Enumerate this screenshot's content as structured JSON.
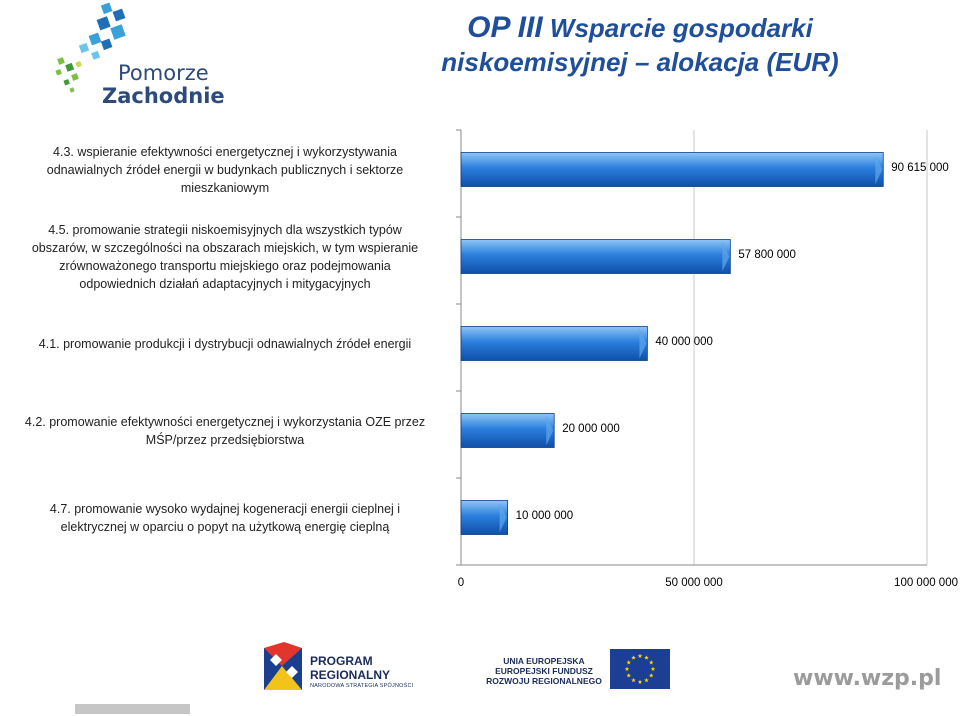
{
  "header": {
    "title_line1_a": "OP III",
    "title_line1_b": " Wsparcie gospodarki",
    "title_line2": "niskoemisyjnej – alokacja (EUR)",
    "logo": {
      "line1": "Pomorze",
      "line2": "Zachodnie"
    }
  },
  "chart_data": {
    "type": "bar",
    "orientation": "horizontal",
    "categories": [
      "4.3. wspieranie efektywności energetycznej i wykorzystywania odnawialnych źródeł energii w budynkach publicznych i sektorze mieszkaniowym",
      "4.5. promowanie strategii niskoemisyjnych dla wszystkich typów obszarów, w szczególności na obszarach miejskich, w tym wspieranie zrównoważonego transportu miejskiego oraz podejmowania odpowiednich działań adaptacyjnych i mitygacyjnych",
      "4.1. promowanie produkcji i dystrybucji odnawialnych źródeł energii",
      "4.2. promowanie efektywności energetycznej i wykorzystania OZE przez MŚP/przez przedsiębiorstwa",
      "4.7. promowanie wysoko wydajnej kogeneracji energii cieplnej i elektrycznej w oparciu o popyt na użytkową energię cieplną"
    ],
    "category_lines": [
      [
        "4.3. wspieranie efektywności energetycznej i wykorzystywania",
        "odnawialnych źródeł energii w budynkach publicznych i sektorze",
        "mieszkaniowym"
      ],
      [
        "4.5. promowanie strategii niskoemisyjnych dla wszystkich typów",
        "obszarów, w szczególności na obszarach miejskich, w tym wspieranie",
        "zrównoważonego transportu miejskiego oraz podejmowania",
        "odpowiednich działań adaptacyjnych i mitygacyjnych"
      ],
      [
        "4.1. promowanie produkcji i dystrybucji odnawialnych źródeł energii"
      ],
      [
        "4.2. promowanie efektywności energetycznej i wykorzystania OZE przez",
        "MŚP/przez przedsiębiorstwa"
      ],
      [
        "4.7. promowanie wysoko wydajnej kogeneracji energii cieplnej i",
        "elektrycznej w oparciu o popyt na użytkową energię cieplną"
      ]
    ],
    "values": [
      90615000,
      57800000,
      40000000,
      20000000,
      10000000
    ],
    "value_labels": [
      "90 615 000",
      "57 800 000",
      "40 000 000",
      "20 000 000",
      "10 000 000"
    ],
    "xlim": [
      0,
      100000000
    ],
    "x_ticks": [
      0,
      50000000,
      100000000
    ],
    "x_tick_labels": [
      "0",
      "50 000 000",
      "100 000 000"
    ],
    "grid": "vertical",
    "legend": "none",
    "bar_color": "#1f6fd0"
  },
  "footer": {
    "program": {
      "line1": "PROGRAM",
      "line2": "REGIONALNY",
      "line3": "NARODOWA STRATEGIA SPÓJNOŚCI"
    },
    "eu": {
      "line1": "UNIA EUROPEJSKA",
      "line2": "EUROPEJSKI FUNDUSZ",
      "line3": "ROZWOJU REGIONALNEGO"
    },
    "website": "www.wzp.pl"
  }
}
